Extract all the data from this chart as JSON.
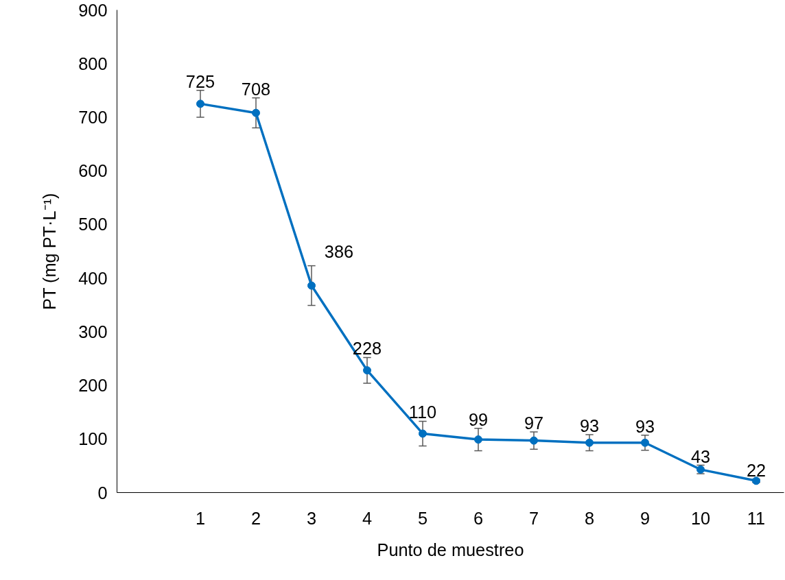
{
  "chart_data": {
    "type": "line",
    "xlabel": "Punto de muestreo",
    "ylabel": "PT (mg PT·L⁻¹)",
    "x": [
      1,
      2,
      3,
      4,
      5,
      6,
      7,
      8,
      9,
      10,
      11
    ],
    "series": [
      {
        "color": "#0070c0",
        "values": [
          725,
          708,
          386,
          228,
          110,
          99,
          97,
          93,
          93,
          43,
          22
        ],
        "errors": [
          25,
          28,
          37,
          24,
          23,
          21,
          16,
          15,
          14,
          8,
          3
        ]
      }
    ],
    "xlim": [
      -0.5,
      11.5
    ],
    "xticks": [
      1,
      2,
      3,
      4,
      5,
      6,
      7,
      8,
      9,
      10,
      11
    ],
    "ylim": [
      0,
      900
    ],
    "yticks": [
      0,
      100,
      200,
      300,
      400,
      500,
      600,
      700,
      800,
      900
    ],
    "grid": false,
    "marker": "circle",
    "line_style": "solid",
    "data_labels": true
  }
}
